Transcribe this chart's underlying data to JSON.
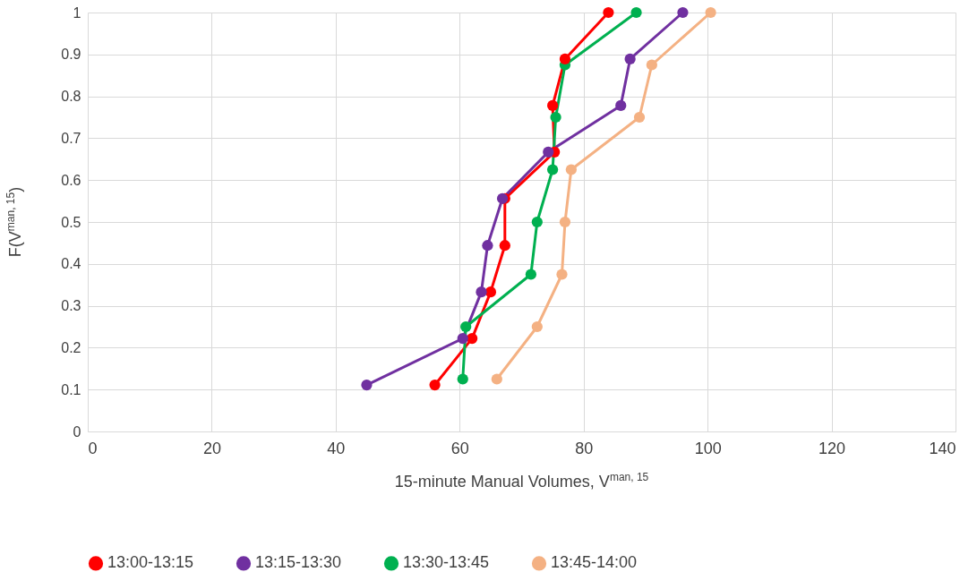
{
  "chart_data": {
    "type": "line",
    "xlabel": "15-minute Manual Volumes, V$^{man, 15}$",
    "ylabel": "F(V$^{man, 15}$)",
    "xlim": [
      0,
      140
    ],
    "xticks": [
      0,
      20,
      40,
      60,
      80,
      100,
      120,
      140
    ],
    "ylim": [
      0,
      1
    ],
    "yticks": [
      0,
      0.1,
      0.2,
      0.3,
      0.4,
      0.5,
      0.6,
      0.7,
      0.8,
      0.9,
      1
    ],
    "grid": true,
    "legend": "bottom",
    "marker": "circle",
    "line_style": "solid",
    "series": [
      {
        "name": "13:00-13:15",
        "color": "#ff0000",
        "x": [
          56,
          62,
          65,
          67.3,
          67.3,
          75.3,
          75,
          77,
          84
        ],
        "values": [
          0.111,
          0.222,
          0.333,
          0.444,
          0.556,
          0.667,
          0.778,
          0.889,
          1
        ]
      },
      {
        "name": "13:15-13:30",
        "color": "#7030a0",
        "x": [
          45,
          60.5,
          63.5,
          64.5,
          66.9,
          74.3,
          86,
          87.5,
          96
        ],
        "values": [
          0.111,
          0.222,
          0.333,
          0.444,
          0.556,
          0.667,
          0.778,
          0.889,
          1
        ]
      },
      {
        "name": "13:30-13:45",
        "color": "#00b050",
        "x": [
          60.5,
          61,
          71.5,
          72.5,
          75,
          75.5,
          77,
          88.5
        ],
        "values": [
          0.125,
          0.25,
          0.375,
          0.5,
          0.625,
          0.75,
          0.875,
          1
        ]
      },
      {
        "name": "13:45-14:00",
        "color": "#f4b183",
        "x": [
          66,
          72.5,
          76.5,
          77,
          78,
          89,
          91,
          100.5
        ],
        "values": [
          0.125,
          0.25,
          0.375,
          0.5,
          0.625,
          0.75,
          0.875,
          1
        ]
      }
    ]
  }
}
